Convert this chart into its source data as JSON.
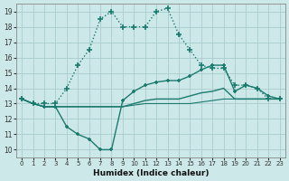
{
  "xlabel": "Humidex (Indice chaleur)",
  "xlim": [
    -0.5,
    23.5
  ],
  "ylim": [
    9.5,
    19.5
  ],
  "xticks": [
    0,
    1,
    2,
    3,
    4,
    5,
    6,
    7,
    8,
    9,
    10,
    11,
    12,
    13,
    14,
    15,
    16,
    17,
    18,
    19,
    20,
    21,
    22,
    23
  ],
  "yticks": [
    10,
    11,
    12,
    13,
    14,
    15,
    16,
    17,
    18,
    19
  ],
  "bg_color": "#cce8e8",
  "grid_color": "#aacccc",
  "line_color": "#1a7a6e",
  "lines": [
    {
      "x": [
        0,
        1,
        2,
        3,
        4,
        5,
        6,
        7,
        8,
        9,
        10,
        11,
        12,
        13,
        14,
        15,
        16,
        17,
        18,
        19,
        20,
        21,
        22,
        23
      ],
      "y": [
        13.3,
        13.0,
        13.0,
        13.0,
        14.0,
        15.5,
        16.5,
        18.5,
        19.0,
        18.0,
        18.0,
        18.0,
        19.0,
        19.2,
        17.5,
        16.5,
        15.5,
        15.3,
        15.3,
        14.2,
        14.2,
        14.0,
        13.3,
        13.3
      ],
      "marker": "+",
      "linestyle": "dotted",
      "linewidth": 1.0,
      "markersize": 4
    },
    {
      "x": [
        0,
        1,
        2,
        3,
        4,
        5,
        6,
        7,
        8,
        9,
        10,
        11,
        12,
        13,
        14,
        15,
        16,
        17,
        18,
        19,
        20,
        21,
        22,
        23
      ],
      "y": [
        13.3,
        13.0,
        12.8,
        12.8,
        11.5,
        11.0,
        10.7,
        10.0,
        10.0,
        13.2,
        13.8,
        14.2,
        14.4,
        14.5,
        14.5,
        14.8,
        15.2,
        15.5,
        15.5,
        13.8,
        14.2,
        14.0,
        13.5,
        13.3
      ],
      "marker": "+",
      "linestyle": "-",
      "linewidth": 1.0,
      "markersize": 3
    },
    {
      "x": [
        0,
        1,
        2,
        3,
        4,
        5,
        6,
        7,
        8,
        9,
        10,
        11,
        12,
        13,
        14,
        15,
        16,
        17,
        18,
        19,
        20,
        21,
        22,
        23
      ],
      "y": [
        13.3,
        13.0,
        12.8,
        12.8,
        12.8,
        12.8,
        12.8,
        12.8,
        12.8,
        12.8,
        13.0,
        13.2,
        13.3,
        13.3,
        13.3,
        13.5,
        13.7,
        13.8,
        14.0,
        13.3,
        13.3,
        13.3,
        13.3,
        13.3
      ],
      "marker": null,
      "linestyle": "-",
      "linewidth": 1.0,
      "markersize": 0
    },
    {
      "x": [
        0,
        1,
        2,
        3,
        4,
        5,
        6,
        7,
        8,
        9,
        10,
        11,
        12,
        13,
        14,
        15,
        16,
        17,
        18,
        19,
        20,
        21,
        22,
        23
      ],
      "y": [
        13.3,
        13.0,
        12.8,
        12.8,
        12.8,
        12.8,
        12.8,
        12.8,
        12.8,
        12.8,
        12.9,
        13.0,
        13.0,
        13.0,
        13.0,
        13.0,
        13.1,
        13.2,
        13.3,
        13.3,
        13.3,
        13.3,
        13.3,
        13.3
      ],
      "marker": null,
      "linestyle": "-",
      "linewidth": 0.8,
      "markersize": 0
    }
  ]
}
